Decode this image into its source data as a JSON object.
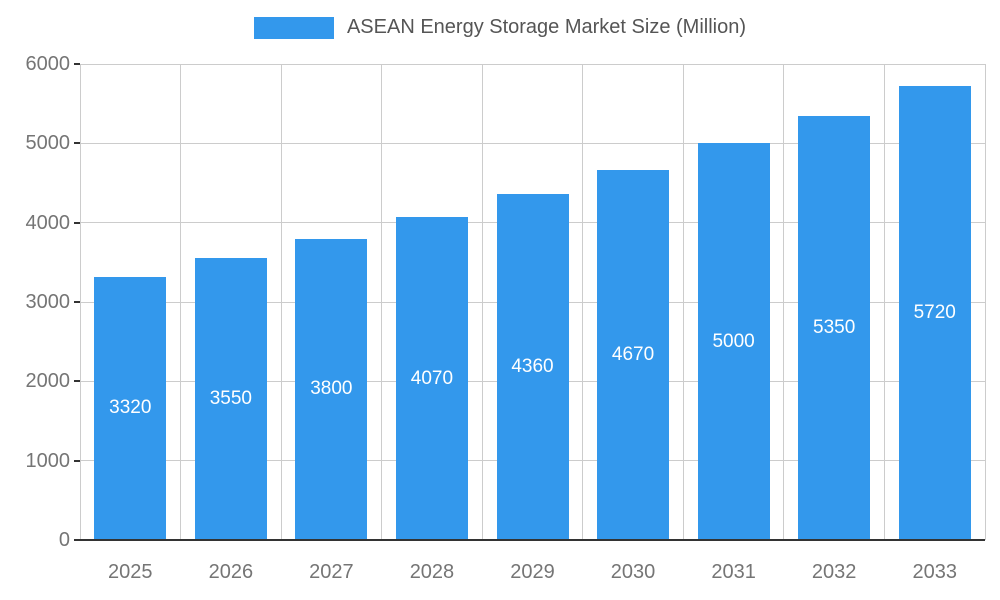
{
  "chart_data": {
    "type": "bar",
    "title": "ASEAN Energy Storage Market Size (Million)",
    "categories": [
      "2025",
      "2026",
      "2027",
      "2028",
      "2029",
      "2030",
      "2031",
      "2032",
      "2033"
    ],
    "values": [
      3320,
      3550,
      3800,
      4070,
      4360,
      4670,
      5000,
      5350,
      5720
    ],
    "xlabel": "",
    "ylabel": "",
    "ylim": [
      0,
      6000
    ],
    "yticks": [
      0,
      1000,
      2000,
      3000,
      4000,
      5000,
      6000
    ],
    "grid": true,
    "legend_position": "top-center",
    "value_labels": "inside-center",
    "colors": {
      "bar": "#3398ec",
      "gridline": "#cccccc",
      "axis_line": "#333333",
      "axis_text": "#757575",
      "title_text": "#555555",
      "value_label": "#ffffff",
      "background": "#ffffff"
    }
  }
}
